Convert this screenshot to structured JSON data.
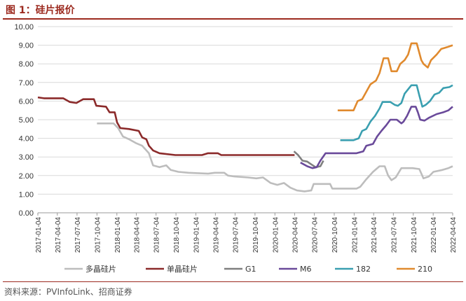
{
  "header": {
    "title": "图 1：硅片报价"
  },
  "footer": {
    "source": "资料来源：PVInfoLink、招商证券"
  },
  "chart_data": {
    "type": "line",
    "title": "",
    "xlabel": "",
    "ylabel": "",
    "ylim": [
      0,
      10
    ],
    "y_ticks": [
      "0.00",
      "1.00",
      "2.00",
      "3.00",
      "4.00",
      "5.00",
      "6.00",
      "7.00",
      "8.00",
      "9.00",
      "10.00"
    ],
    "x_ticks": [
      "2017-01-04",
      "2017-04-04",
      "2017-07-04",
      "2017-10-04",
      "2018-01-04",
      "2018-04-04",
      "2018-07-04",
      "2018-10-04",
      "2019-01-04",
      "2019-04-04",
      "2019-07-04",
      "2019-10-04",
      "2020-01-04",
      "2020-04-04",
      "2020-07-04",
      "2020-10-04",
      "2021-01-04",
      "2021-04-04",
      "2021-07-04",
      "2021-10-04",
      "2022-01-04",
      "2022-04-04"
    ],
    "grid": "horizontal",
    "legend_position": "bottom",
    "x_start": "2017-01-04",
    "x_end": "2022-04-04",
    "series": [
      {
        "name": "多晶硅片",
        "color": "#bdbdbd",
        "points": [
          [
            "2017-10-04",
            4.8
          ],
          [
            "2017-12-20",
            4.8
          ],
          [
            "2018-01-10",
            4.55
          ],
          [
            "2018-02-01",
            4.1
          ],
          [
            "2018-03-01",
            3.95
          ],
          [
            "2018-04-01",
            3.75
          ],
          [
            "2018-05-01",
            3.6
          ],
          [
            "2018-06-01",
            3.2
          ],
          [
            "2018-06-20",
            2.55
          ],
          [
            "2018-07-20",
            2.45
          ],
          [
            "2018-08-20",
            2.55
          ],
          [
            "2018-09-10",
            2.3
          ],
          [
            "2018-10-15",
            2.2
          ],
          [
            "2018-12-01",
            2.15
          ],
          [
            "2019-03-01",
            2.1
          ],
          [
            "2019-04-01",
            2.15
          ],
          [
            "2019-05-15",
            2.15
          ],
          [
            "2019-06-01",
            2.0
          ],
          [
            "2019-07-01",
            1.95
          ],
          [
            "2019-09-01",
            1.9
          ],
          [
            "2019-10-10",
            1.85
          ],
          [
            "2019-11-10",
            1.9
          ],
          [
            "2019-12-15",
            1.6
          ],
          [
            "2020-01-15",
            1.5
          ],
          [
            "2020-02-15",
            1.6
          ],
          [
            "2020-03-15",
            1.35
          ],
          [
            "2020-04-15",
            1.2
          ],
          [
            "2020-05-20",
            1.15
          ],
          [
            "2020-06-20",
            1.2
          ],
          [
            "2020-07-01",
            1.55
          ],
          [
            "2020-09-15",
            1.55
          ],
          [
            "2020-09-25",
            1.3
          ],
          [
            "2021-01-15",
            1.3
          ],
          [
            "2021-02-01",
            1.4
          ],
          [
            "2021-03-01",
            1.8
          ],
          [
            "2021-04-01",
            2.2
          ],
          [
            "2021-05-01",
            2.5
          ],
          [
            "2021-05-25",
            2.5
          ],
          [
            "2021-06-10",
            2.0
          ],
          [
            "2021-06-25",
            1.75
          ],
          [
            "2021-07-15",
            1.9
          ],
          [
            "2021-08-10",
            2.4
          ],
          [
            "2021-09-01",
            2.4
          ],
          [
            "2021-10-01",
            2.4
          ],
          [
            "2021-11-01",
            2.35
          ],
          [
            "2021-11-20",
            1.85
          ],
          [
            "2021-12-15",
            1.95
          ],
          [
            "2022-01-05",
            2.2
          ],
          [
            "2022-02-15",
            2.3
          ],
          [
            "2022-03-15",
            2.4
          ],
          [
            "2022-04-04",
            2.5
          ]
        ]
      },
      {
        "name": "单晶硅片",
        "color": "#8b2a2a",
        "points": [
          [
            "2017-01-04",
            6.2
          ],
          [
            "2017-02-01",
            6.15
          ],
          [
            "2017-05-01",
            6.15
          ],
          [
            "2017-06-01",
            5.95
          ],
          [
            "2017-07-01",
            5.9
          ],
          [
            "2017-08-01",
            6.1
          ],
          [
            "2017-09-20",
            6.1
          ],
          [
            "2017-10-01",
            5.75
          ],
          [
            "2017-11-15",
            5.7
          ],
          [
            "2017-12-01",
            5.4
          ],
          [
            "2017-12-25",
            5.4
          ],
          [
            "2018-01-05",
            4.85
          ],
          [
            "2018-01-20",
            4.55
          ],
          [
            "2018-03-01",
            4.5
          ],
          [
            "2018-04-15",
            4.4
          ],
          [
            "2018-05-01",
            4.05
          ],
          [
            "2018-05-20",
            3.95
          ],
          [
            "2018-06-01",
            3.6
          ],
          [
            "2018-06-20",
            3.35
          ],
          [
            "2018-07-20",
            3.2
          ],
          [
            "2018-10-01",
            3.1
          ],
          [
            "2019-02-01",
            3.1
          ],
          [
            "2019-03-01",
            3.2
          ],
          [
            "2019-04-15",
            3.2
          ],
          [
            "2019-05-01",
            3.1
          ],
          [
            "2020-04-04",
            3.1
          ]
        ]
      },
      {
        "name": "G1",
        "color": "#7f7f7f",
        "points": [
          [
            "2020-04-01",
            3.3
          ],
          [
            "2020-04-20",
            3.1
          ],
          [
            "2020-05-10",
            2.8
          ],
          [
            "2020-06-01",
            2.75
          ],
          [
            "2020-06-20",
            2.6
          ],
          [
            "2020-07-10",
            2.45
          ],
          [
            "2020-08-01",
            2.5
          ],
          [
            "2020-08-15",
            2.8
          ]
        ]
      },
      {
        "name": "M6",
        "color": "#6a4a9a",
        "points": [
          [
            "2020-05-01",
            2.7
          ],
          [
            "2020-06-01",
            2.5
          ],
          [
            "2020-06-25",
            2.4
          ],
          [
            "2020-07-15",
            2.45
          ],
          [
            "2020-08-01",
            2.8
          ],
          [
            "2020-08-25",
            3.2
          ],
          [
            "2021-01-15",
            3.2
          ],
          [
            "2021-02-15",
            3.3
          ],
          [
            "2021-03-01",
            3.6
          ],
          [
            "2021-04-01",
            3.7
          ],
          [
            "2021-04-20",
            4.1
          ],
          [
            "2021-05-10",
            4.4
          ],
          [
            "2021-06-01",
            4.7
          ],
          [
            "2021-06-20",
            5.0
          ],
          [
            "2021-07-20",
            5.0
          ],
          [
            "2021-08-10",
            4.8
          ],
          [
            "2021-08-20",
            4.9
          ],
          [
            "2021-09-05",
            5.2
          ],
          [
            "2021-09-25",
            5.7
          ],
          [
            "2021-10-15",
            5.7
          ],
          [
            "2021-10-25",
            5.4
          ],
          [
            "2021-11-05",
            5.0
          ],
          [
            "2021-11-25",
            4.95
          ],
          [
            "2021-12-15",
            5.1
          ],
          [
            "2022-01-20",
            5.3
          ],
          [
            "2022-02-20",
            5.4
          ],
          [
            "2022-03-15",
            5.5
          ],
          [
            "2022-04-04",
            5.7
          ]
        ]
      },
      {
        "name": "182",
        "color": "#3a9fb0",
        "points": [
          [
            "2020-11-01",
            3.9
          ],
          [
            "2021-01-01",
            3.9
          ],
          [
            "2021-01-25",
            4.0
          ],
          [
            "2021-02-10",
            4.4
          ],
          [
            "2021-03-01",
            4.5
          ],
          [
            "2021-03-20",
            4.9
          ],
          [
            "2021-04-10",
            5.2
          ],
          [
            "2021-05-01",
            5.6
          ],
          [
            "2021-05-15",
            5.95
          ],
          [
            "2021-06-20",
            5.95
          ],
          [
            "2021-07-10",
            5.8
          ],
          [
            "2021-07-25",
            5.75
          ],
          [
            "2021-08-10",
            5.9
          ],
          [
            "2021-08-25",
            6.4
          ],
          [
            "2021-09-25",
            6.85
          ],
          [
            "2021-10-20",
            6.85
          ],
          [
            "2021-11-01",
            6.3
          ],
          [
            "2021-11-15",
            5.7
          ],
          [
            "2021-12-01",
            5.8
          ],
          [
            "2021-12-20",
            6.0
          ],
          [
            "2022-01-10",
            6.35
          ],
          [
            "2022-02-01",
            6.45
          ],
          [
            "2022-02-20",
            6.7
          ],
          [
            "2022-03-20",
            6.75
          ],
          [
            "2022-04-04",
            6.85
          ]
        ]
      },
      {
        "name": "210",
        "color": "#e08a2e",
        "points": [
          [
            "2020-10-20",
            5.5
          ],
          [
            "2021-01-01",
            5.5
          ],
          [
            "2021-01-20",
            6.0
          ],
          [
            "2021-02-10",
            6.1
          ],
          [
            "2021-03-01",
            6.5
          ],
          [
            "2021-03-20",
            6.9
          ],
          [
            "2021-04-15",
            7.1
          ],
          [
            "2021-05-01",
            7.5
          ],
          [
            "2021-05-20",
            8.3
          ],
          [
            "2021-06-10",
            8.3
          ],
          [
            "2021-06-25",
            7.6
          ],
          [
            "2021-07-20",
            7.6
          ],
          [
            "2021-08-05",
            8.0
          ],
          [
            "2021-08-25",
            8.2
          ],
          [
            "2021-09-10",
            8.5
          ],
          [
            "2021-09-25",
            9.1
          ],
          [
            "2021-10-20",
            9.1
          ],
          [
            "2021-11-10",
            8.2
          ],
          [
            "2021-11-20",
            8.0
          ],
          [
            "2021-12-10",
            7.8
          ],
          [
            "2021-12-25",
            8.2
          ],
          [
            "2022-01-20",
            8.5
          ],
          [
            "2022-02-10",
            8.8
          ],
          [
            "2022-03-10",
            8.9
          ],
          [
            "2022-04-04",
            9.0
          ]
        ]
      }
    ]
  }
}
